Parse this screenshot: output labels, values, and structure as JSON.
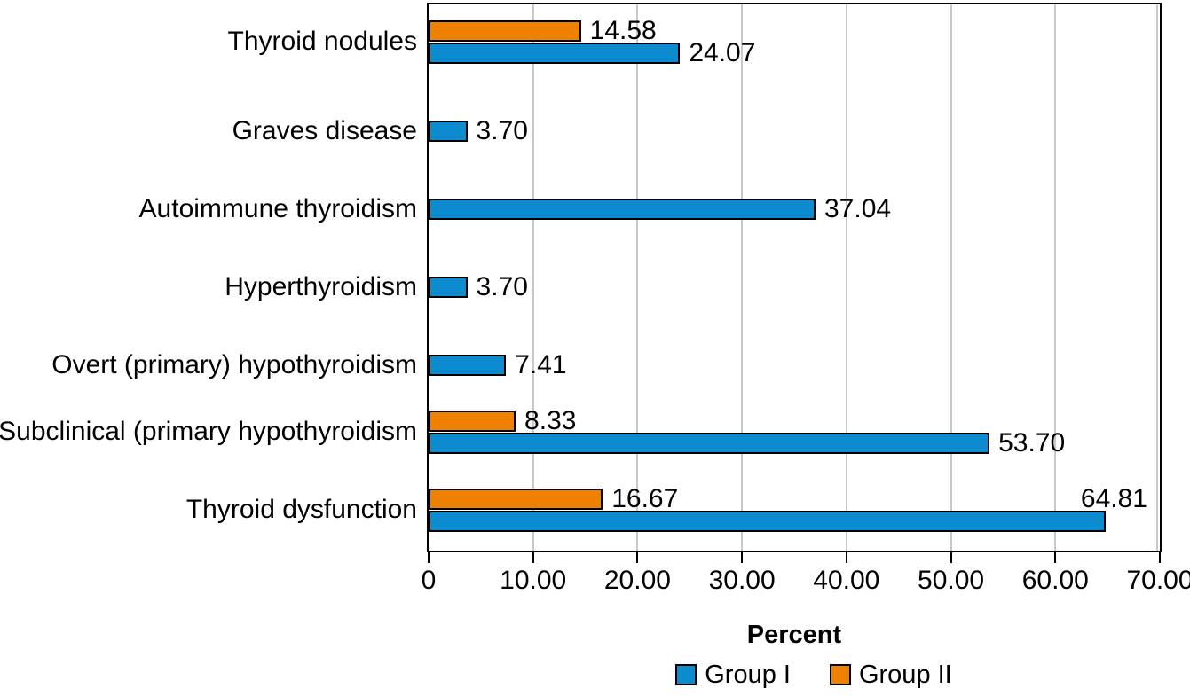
{
  "chart_data": {
    "type": "bar",
    "orientation": "horizontal",
    "title": "",
    "xlabel": "Percent",
    "ylabel": "",
    "xlim": [
      0,
      70
    ],
    "xticks": [
      0,
      10,
      20,
      30,
      40,
      50,
      60,
      70
    ],
    "xtick_labels": [
      "0",
      "10.00",
      "20.00",
      "30.00",
      "40.00",
      "50.00",
      "60.00",
      "70.00"
    ],
    "grid": "vertical",
    "gridline_color": "#c9c9c9",
    "legend_position": "bottom",
    "categories": [
      "Thyroid nodules",
      "Graves disease",
      "Autoimmune thyroidism",
      "Hyperthyroidism",
      "Overt (primary) hypothyroidism",
      "Subclinical (primary hypothyroidism",
      "Thyroid dysfunction"
    ],
    "series": [
      {
        "name": "Group I",
        "color": "#0c8bce",
        "values": [
          24.07,
          3.7,
          37.04,
          3.7,
          7.41,
          53.7,
          64.81
        ],
        "labels": [
          "24.07",
          "3.70",
          "37.04",
          "3.70",
          "7.41",
          "53.70",
          "64.81"
        ]
      },
      {
        "name": "Group II",
        "color": "#ee8100",
        "values": [
          14.58,
          null,
          null,
          null,
          null,
          8.33,
          16.67
        ],
        "labels": [
          "14.58",
          null,
          null,
          null,
          null,
          "8.33",
          "16.67"
        ]
      }
    ]
  }
}
